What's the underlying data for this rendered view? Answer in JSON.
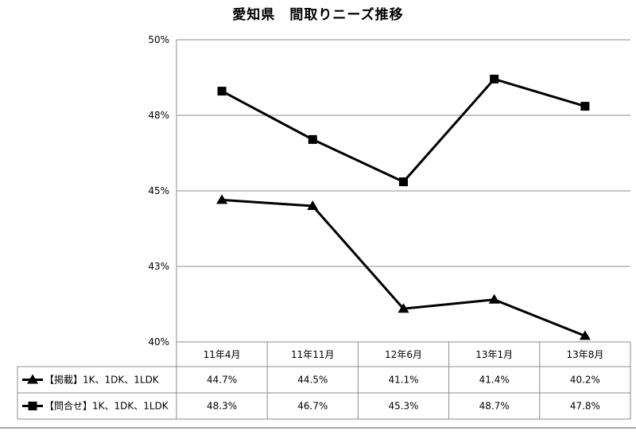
{
  "chart_data": {
    "type": "line",
    "title": "愛知県　間取りニーズ推移",
    "categories": [
      "11年4月",
      "11年11月",
      "12年6月",
      "13年1月",
      "13年8月"
    ],
    "y_ticks": [
      "50%",
      "48%",
      "45%",
      "43%",
      "40%"
    ],
    "ylim": [
      40,
      50
    ],
    "grid": true,
    "legend": "bottom-data-table",
    "series": [
      {
        "name": "【掲載】1K、1DK、1LDK",
        "marker": "triangle",
        "values": [
          44.7,
          44.5,
          41.1,
          41.4,
          40.2
        ],
        "labels": [
          "44.7%",
          "44.5%",
          "41.1%",
          "41.4%",
          "40.2%"
        ]
      },
      {
        "name": "【問合せ】1K、1DK、1LDK",
        "marker": "square",
        "values": [
          48.3,
          46.7,
          45.3,
          48.7,
          47.8
        ],
        "labels": [
          "48.3%",
          "46.7%",
          "45.3%",
          "48.7%",
          "47.8%"
        ]
      }
    ]
  }
}
